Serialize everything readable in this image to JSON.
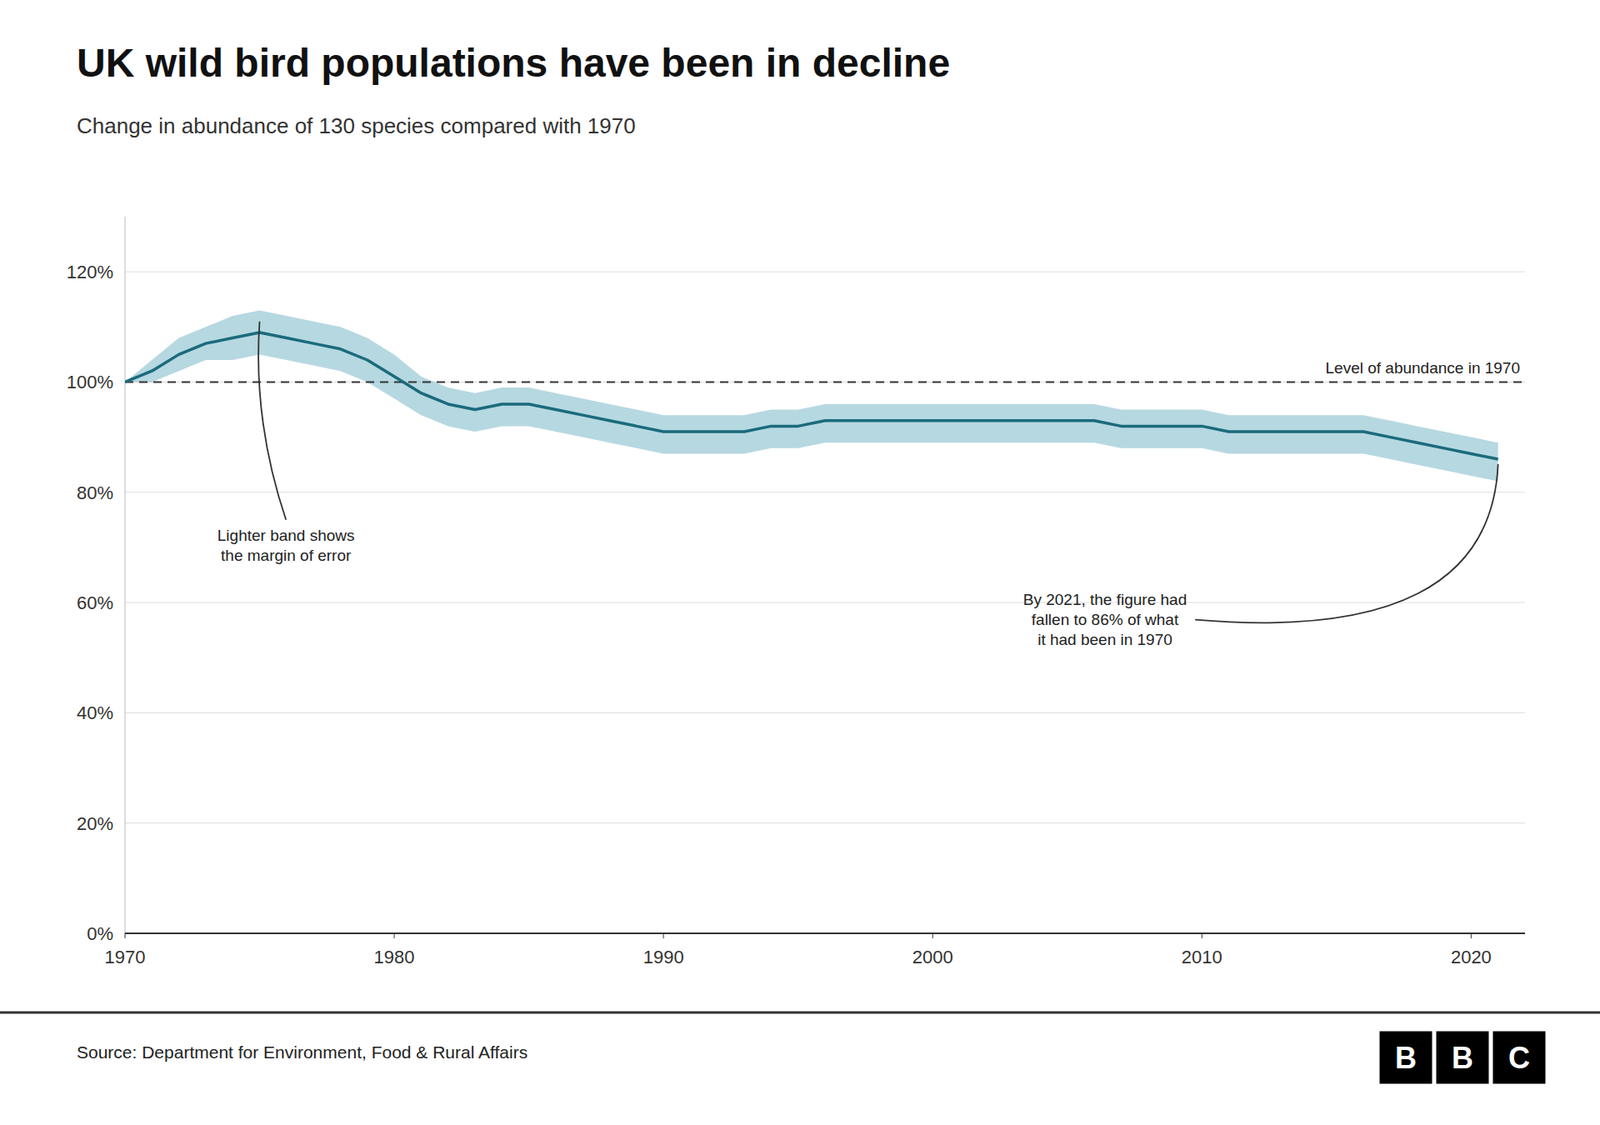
{
  "chart_data": {
    "type": "line",
    "title": "UK wild bird populations have been in decline",
    "subtitle": "Change in abundance of 130 species compared with 1970",
    "source": "Source: Department for Environment, Food & Rural Affairs",
    "logo": "BBC",
    "x": [
      1970,
      1971,
      1972,
      1973,
      1974,
      1975,
      1976,
      1977,
      1978,
      1979,
      1980,
      1981,
      1982,
      1983,
      1984,
      1985,
      1986,
      1987,
      1988,
      1989,
      1990,
      1991,
      1992,
      1993,
      1994,
      1995,
      1996,
      1997,
      1998,
      1999,
      2000,
      2001,
      2002,
      2003,
      2004,
      2005,
      2006,
      2007,
      2008,
      2009,
      2010,
      2011,
      2012,
      2013,
      2014,
      2015,
      2016,
      2017,
      2018,
      2019,
      2020,
      2021
    ],
    "series": [
      {
        "color": "#1a6b7c",
        "values": [
          100,
          102,
          105,
          107,
          108,
          109,
          108,
          107,
          106,
          104,
          101,
          98,
          96,
          95,
          96,
          96,
          95,
          94,
          93,
          92,
          91,
          91,
          91,
          91,
          92,
          92,
          93,
          93,
          93,
          93,
          93,
          93,
          93,
          93,
          93,
          93,
          93,
          92,
          92,
          92,
          92,
          91,
          91,
          91,
          91,
          91,
          91,
          90,
          89,
          88,
          87,
          86
        ]
      }
    ],
    "band": {
      "color": "#7ab8c8",
      "upper": [
        100,
        104,
        108,
        110,
        112,
        113,
        112,
        111,
        110,
        108,
        105,
        101,
        99,
        98,
        99,
        99,
        98,
        97,
        96,
        95,
        94,
        94,
        94,
        94,
        95,
        95,
        96,
        96,
        96,
        96,
        96,
        96,
        96,
        96,
        96,
        96,
        96,
        95,
        95,
        95,
        95,
        94,
        94,
        94,
        94,
        94,
        94,
        93,
        92,
        91,
        90,
        89
      ],
      "lower": [
        100,
        100,
        102,
        104,
        104,
        105,
        104,
        103,
        102,
        100,
        97,
        94,
        92,
        91,
        92,
        92,
        91,
        90,
        89,
        88,
        87,
        87,
        87,
        87,
        88,
        88,
        89,
        89,
        89,
        89,
        89,
        89,
        89,
        89,
        89,
        89,
        89,
        88,
        88,
        88,
        88,
        87,
        87,
        87,
        87,
        87,
        87,
        86,
        85,
        84,
        83,
        82
      ]
    },
    "reference_line": {
      "value": 100,
      "label": "Level of abundance in 1970",
      "color": "#333333",
      "line_style": "dashed"
    },
    "annotations": [
      {
        "text": "Lighter band shows\nthe margin of error"
      },
      {
        "text": "By 2021, the figure had\nfallen to 86% of what\nit had been in 1970"
      }
    ],
    "xlim": [
      1970,
      2022
    ],
    "xticks": [
      1970,
      1980,
      1990,
      2000,
      2010,
      2020
    ],
    "ylim": [
      0,
      130
    ],
    "yticks": [
      {
        "value": 0,
        "label": "0%"
      },
      {
        "value": 20,
        "label": "20%"
      },
      {
        "value": 40,
        "label": "40%"
      },
      {
        "value": 60,
        "label": "60%"
      },
      {
        "value": 80,
        "label": "80%"
      },
      {
        "value": 100,
        "label": "100%"
      },
      {
        "value": 120,
        "label": "120%"
      }
    ],
    "grid": true
  }
}
